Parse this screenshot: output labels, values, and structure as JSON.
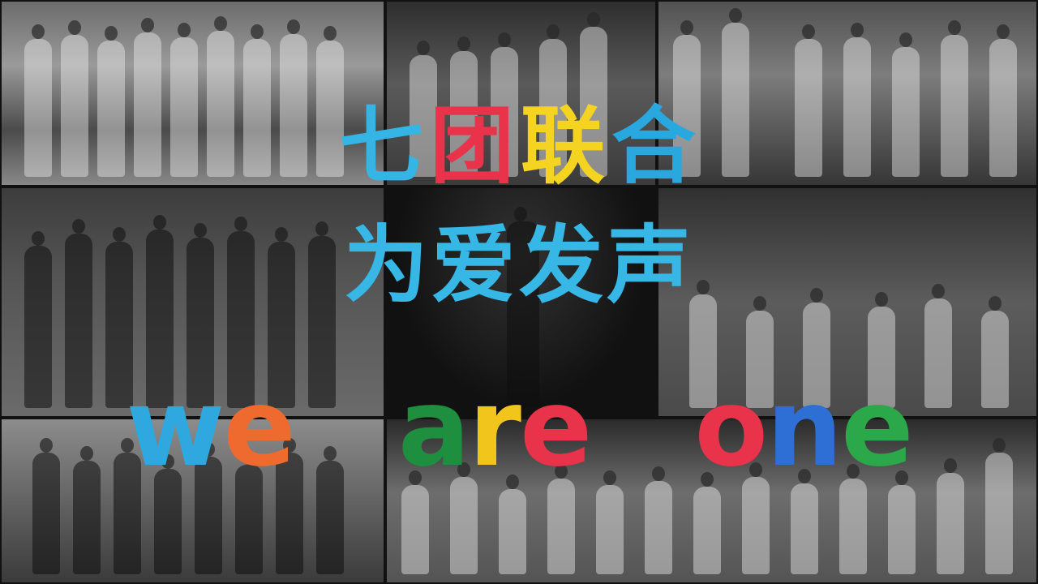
{
  "title": {
    "line1_chars": [
      {
        "char": "七",
        "color": "#35b5e5"
      },
      {
        "char": "团",
        "color": "#e8334a"
      },
      {
        "char": "联",
        "color": "#f5d321"
      },
      {
        "char": "合",
        "color": "#29a8e0"
      }
    ],
    "line2": "为爱发声"
  },
  "slogan": {
    "words": [
      {
        "letters": [
          {
            "char": "w",
            "color": "#2fa8e0"
          },
          {
            "char": "e",
            "color": "#ee6a2e"
          }
        ]
      },
      {
        "letters": [
          {
            "char": "a",
            "color": "#1e8f3e"
          },
          {
            "char": "r",
            "color": "#f2c51c"
          },
          {
            "char": "e",
            "color": "#e8334a"
          }
        ]
      },
      {
        "letters": [
          {
            "char": "o",
            "color": "#e8334a"
          },
          {
            "char": "n",
            "color": "#2e6fd6"
          },
          {
            "char": "e",
            "color": "#2aa84a"
          }
        ]
      }
    ]
  },
  "colors": {
    "blue": "#35b5e5",
    "red": "#e8334a",
    "yellow": "#f5d321",
    "green": "#1e8f3e",
    "orange": "#ee6a2e",
    "purple": "#a04cc4"
  }
}
